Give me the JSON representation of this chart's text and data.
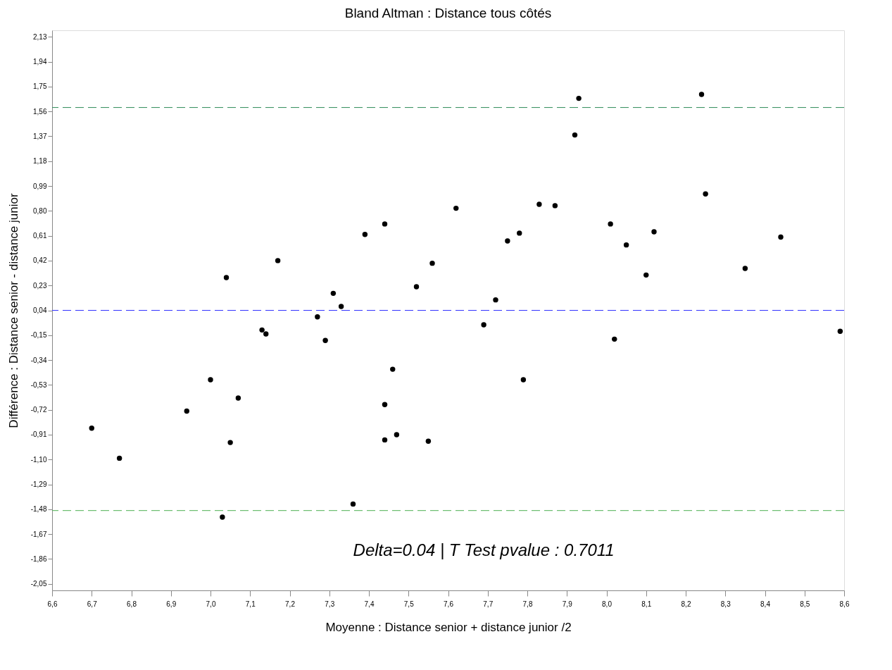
{
  "chart_data": {
    "type": "scatter",
    "title": "Bland Altman : Distance tous côtés",
    "xlabel": "Moyenne : Distance senior + distance junior /2",
    "ylabel": "Différence : Distance senior - distance junior",
    "x": [
      6.7,
      6.77,
      6.94,
      7.0,
      7.04,
      7.05,
      7.03,
      7.07,
      7.13,
      7.14,
      7.17,
      7.27,
      7.29,
      7.31,
      7.33,
      7.36,
      7.39,
      7.44,
      7.44,
      7.44,
      7.46,
      7.47,
      7.52,
      7.56,
      7.55,
      7.62,
      7.69,
      7.72,
      7.75,
      7.78,
      7.79,
      7.83,
      7.87,
      7.92,
      7.93,
      8.01,
      8.02,
      8.05,
      8.1,
      8.12,
      8.24,
      8.25,
      8.35,
      8.44,
      8.59
    ],
    "series": [
      {
        "color": "#000000",
        "values": [
          -0.86,
          -1.09,
          -0.73,
          -0.49,
          0.29,
          -0.97,
          -1.54,
          -0.63,
          -0.11,
          -0.14,
          0.42,
          -0.01,
          -0.19,
          0.17,
          0.07,
          -1.44,
          0.62,
          0.7,
          -0.68,
          -0.95,
          -0.41,
          -0.91,
          0.22,
          0.4,
          -0.96,
          0.82,
          -0.07,
          0.12,
          0.57,
          0.63,
          -0.49,
          0.85,
          0.84,
          1.38,
          1.66,
          0.7,
          -0.18,
          0.54,
          0.31,
          0.64,
          1.69,
          0.93,
          0.36,
          0.6,
          -0.12
        ]
      }
    ],
    "marker": "circle",
    "grid": false,
    "legend": false,
    "xlim": [
      6.6,
      8.6
    ],
    "ylim": [
      -2.1,
      2.18
    ],
    "xticks": [
      {
        "value": 6.6,
        "label": "6,6"
      },
      {
        "value": 6.7,
        "label": "6,7"
      },
      {
        "value": 6.8,
        "label": "6,8"
      },
      {
        "value": 6.9,
        "label": "6,9"
      },
      {
        "value": 7.0,
        "label": "7,0"
      },
      {
        "value": 7.1,
        "label": "7,1"
      },
      {
        "value": 7.2,
        "label": "7,2"
      },
      {
        "value": 7.3,
        "label": "7,3"
      },
      {
        "value": 7.4,
        "label": "7,4"
      },
      {
        "value": 7.5,
        "label": "7,5"
      },
      {
        "value": 7.6,
        "label": "7,6"
      },
      {
        "value": 7.7,
        "label": "7,7"
      },
      {
        "value": 7.8,
        "label": "7,8"
      },
      {
        "value": 7.9,
        "label": "7,9"
      },
      {
        "value": 8.0,
        "label": "8,0"
      },
      {
        "value": 8.1,
        "label": "8,1"
      },
      {
        "value": 8.2,
        "label": "8,2"
      },
      {
        "value": 8.3,
        "label": "8,3"
      },
      {
        "value": 8.4,
        "label": "8,4"
      },
      {
        "value": 8.5,
        "label": "8,5"
      },
      {
        "value": 8.6,
        "label": "8,6"
      }
    ],
    "yticks": [
      {
        "value": 2.13,
        "label": "2,13"
      },
      {
        "value": 1.94,
        "label": "1,94"
      },
      {
        "value": 1.75,
        "label": "1,75"
      },
      {
        "value": 1.56,
        "label": "1,56"
      },
      {
        "value": 1.37,
        "label": "1,37"
      },
      {
        "value": 1.18,
        "label": "1,18"
      },
      {
        "value": 0.99,
        "label": "0,99"
      },
      {
        "value": 0.8,
        "label": "0,80"
      },
      {
        "value": 0.61,
        "label": "0,61"
      },
      {
        "value": 0.42,
        "label": "0,42"
      },
      {
        "value": 0.23,
        "label": "0,23"
      },
      {
        "value": 0.04,
        "label": "0,04"
      },
      {
        "value": -0.15,
        "label": "-0,15"
      },
      {
        "value": -0.34,
        "label": "-0,34"
      },
      {
        "value": -0.53,
        "label": "-0,53"
      },
      {
        "value": -0.72,
        "label": "-0,72"
      },
      {
        "value": -0.91,
        "label": "-0,91"
      },
      {
        "value": -1.1,
        "label": "-1,10"
      },
      {
        "value": -1.29,
        "label": "-1,29"
      },
      {
        "value": -1.48,
        "label": "-1,48"
      },
      {
        "value": -1.67,
        "label": "-1,67"
      },
      {
        "value": -1.86,
        "label": "-1,86"
      },
      {
        "value": -2.05,
        "label": "-2,05"
      }
    ],
    "ref_lines": [
      {
        "axis": "y",
        "value": 1.59,
        "color": "#2e8b57",
        "line_style": "dashed"
      },
      {
        "axis": "y",
        "value": 0.04,
        "color": "#3333ff",
        "line_style": "dashed"
      },
      {
        "axis": "y",
        "value": -1.49,
        "color": "#4caf50",
        "line_style": "dashed"
      }
    ],
    "annotations": [
      "Delta=0.04 | T Test pvalue : 0.7011"
    ]
  }
}
